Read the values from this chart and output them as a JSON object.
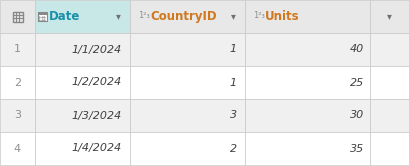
{
  "rows": [
    [
      1,
      "1/1/2024",
      1,
      40
    ],
    [
      2,
      "1/2/2024",
      1,
      25
    ],
    [
      3,
      "1/3/2024",
      3,
      30
    ],
    [
      4,
      "1/4/2024",
      2,
      35
    ]
  ],
  "header_bg_index": "#e8e8e8",
  "header_bg_date": "#c8e8e8",
  "header_bg_other": "#e8e8e8",
  "row_bg_light": "#f0f0f0",
  "row_bg_white": "#ffffff",
  "header_text_color": "#d07820",
  "date_header_text_color": "#1a90aa",
  "border_color": "#c8c8c8",
  "data_text_color": "#404040",
  "index_text_color": "#909090",
  "arrow_color": "#707070",
  "icon_color": "#909090",
  "fig_bg": "#f8f8f8",
  "n_rows": 4,
  "font_size": 8,
  "header_font_size": 8.5
}
